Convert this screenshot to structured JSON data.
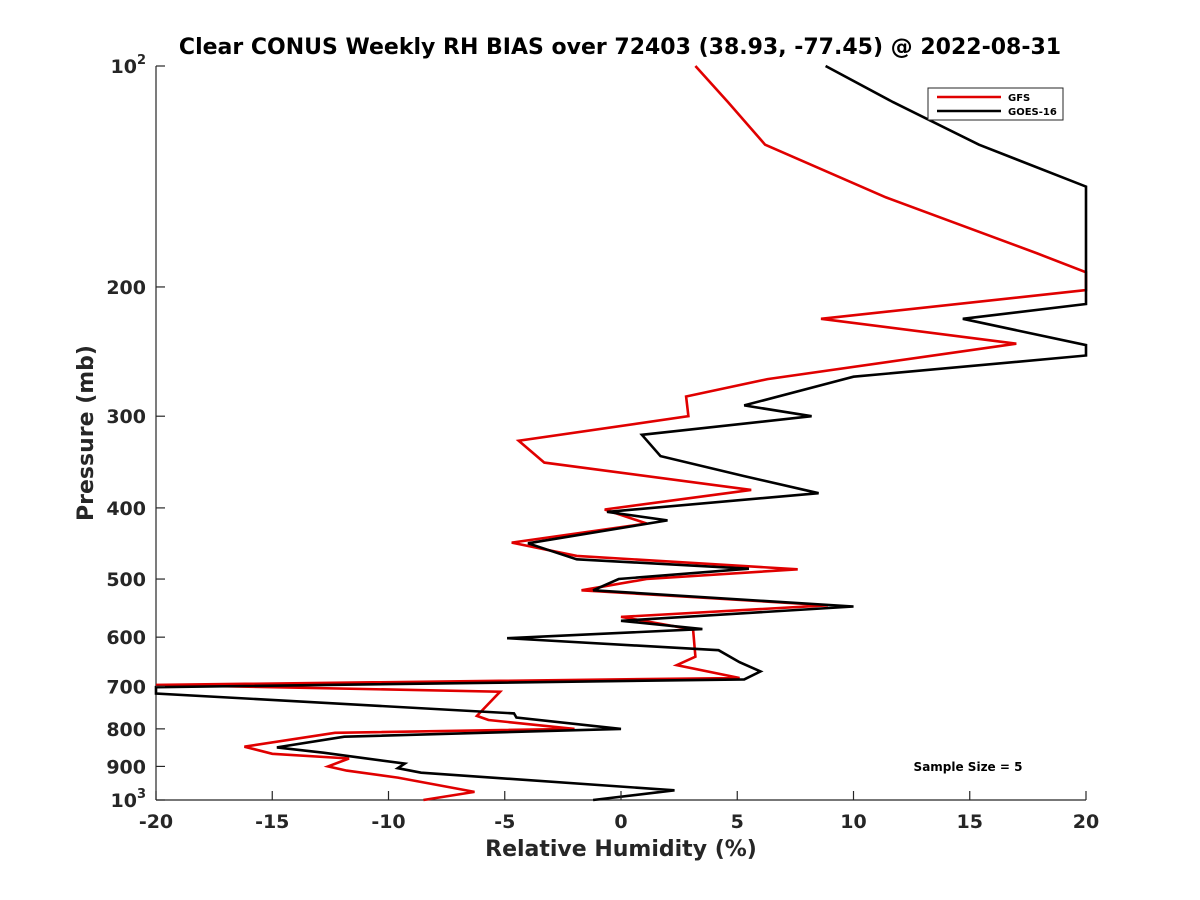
{
  "chart_data": {
    "type": "line",
    "title": "Clear CONUS Weekly RH BIAS over 72403 (38.93, -77.45) @ 2022-08-31",
    "xlabel": "Relative Humidity (%)",
    "ylabel": "Pressure (mb)",
    "xlim": [
      -20,
      20
    ],
    "ylim": [
      100,
      1000
    ],
    "y_scale": "log",
    "y_reversed": true,
    "x_ticks": [
      -20,
      -15,
      -10,
      -5,
      0,
      5,
      10,
      15,
      20
    ],
    "x_tick_labels": [
      "-20",
      "-15",
      "-10",
      "-5",
      "0",
      "5",
      "10",
      "15",
      "20"
    ],
    "y_ticks": [
      100,
      200,
      300,
      400,
      500,
      600,
      700,
      800,
      900,
      1000
    ],
    "y_tick_labels": [
      {
        "base": "10",
        "exp": "2"
      },
      {
        "base": "200",
        "exp": ""
      },
      {
        "base": "300",
        "exp": ""
      },
      {
        "base": "400",
        "exp": ""
      },
      {
        "base": "500",
        "exp": ""
      },
      {
        "base": "600",
        "exp": ""
      },
      {
        "base": "700",
        "exp": ""
      },
      {
        "base": "800",
        "exp": ""
      },
      {
        "base": "900",
        "exp": ""
      },
      {
        "base": "10",
        "exp": "3"
      }
    ],
    "grid": false,
    "legend_position": "top-right",
    "annotation": "Sample Size = 5",
    "series": [
      {
        "name": "GFS",
        "color": "#e00000",
        "points": [
          {
            "x": 3.2,
            "y": 100
          },
          {
            "x": 4.6,
            "y": 112
          },
          {
            "x": 6.2,
            "y": 128
          },
          {
            "x": 11.4,
            "y": 151
          },
          {
            "x": 17.9,
            "y": 180
          },
          {
            "x": 20,
            "y": 191
          },
          {
            "x": 20,
            "y": 202
          },
          {
            "x": 8.6,
            "y": 221
          },
          {
            "x": 17.0,
            "y": 239
          },
          {
            "x": 6.3,
            "y": 267
          },
          {
            "x": 2.8,
            "y": 282
          },
          {
            "x": 2.9,
            "y": 300
          },
          {
            "x": -4.4,
            "y": 324
          },
          {
            "x": -3.3,
            "y": 347
          },
          {
            "x": 5.6,
            "y": 378
          },
          {
            "x": -0.7,
            "y": 402
          },
          {
            "x": 1.1,
            "y": 420
          },
          {
            "x": -4.7,
            "y": 446
          },
          {
            "x": -1.9,
            "y": 465
          },
          {
            "x": 7.6,
            "y": 485
          },
          {
            "x": 1.1,
            "y": 500
          },
          {
            "x": -1.7,
            "y": 518
          },
          {
            "x": 8.9,
            "y": 543
          },
          {
            "x": 0.0,
            "y": 563
          },
          {
            "x": 3.1,
            "y": 586
          },
          {
            "x": 3.2,
            "y": 638
          },
          {
            "x": 2.4,
            "y": 655
          },
          {
            "x": 5.1,
            "y": 682
          },
          {
            "x": -20,
            "y": 697
          },
          {
            "x": -5.2,
            "y": 712
          },
          {
            "x": -6.2,
            "y": 768
          },
          {
            "x": -5.7,
            "y": 778
          },
          {
            "x": -2.0,
            "y": 800
          },
          {
            "x": -12.3,
            "y": 810
          },
          {
            "x": -16.2,
            "y": 846
          },
          {
            "x": -15.0,
            "y": 865
          },
          {
            "x": -11.7,
            "y": 878
          },
          {
            "x": -12.6,
            "y": 900
          },
          {
            "x": -11.8,
            "y": 912
          },
          {
            "x": -9.6,
            "y": 932
          },
          {
            "x": -6.3,
            "y": 975
          },
          {
            "x": -8.5,
            "y": 1000
          }
        ]
      },
      {
        "name": "GOES-16",
        "color": "#000000",
        "points": [
          {
            "x": 8.8,
            "y": 100
          },
          {
            "x": 11.7,
            "y": 112
          },
          {
            "x": 15.4,
            "y": 128
          },
          {
            "x": 20,
            "y": 146
          },
          {
            "x": 20,
            "y": 211
          },
          {
            "x": 14.7,
            "y": 221
          },
          {
            "x": 20,
            "y": 240
          },
          {
            "x": 20,
            "y": 248
          },
          {
            "x": 10.0,
            "y": 265
          },
          {
            "x": 5.3,
            "y": 290
          },
          {
            "x": 8.2,
            "y": 300
          },
          {
            "x": 0.9,
            "y": 318
          },
          {
            "x": 1.7,
            "y": 340
          },
          {
            "x": 5.3,
            "y": 362
          },
          {
            "x": 8.5,
            "y": 382
          },
          {
            "x": -0.6,
            "y": 405
          },
          {
            "x": 2.0,
            "y": 416
          },
          {
            "x": -4.0,
            "y": 447
          },
          {
            "x": -1.9,
            "y": 470
          },
          {
            "x": 5.5,
            "y": 484
          },
          {
            "x": -0.1,
            "y": 500
          },
          {
            "x": -1.2,
            "y": 518
          },
          {
            "x": 10.0,
            "y": 545
          },
          {
            "x": 0.0,
            "y": 570
          },
          {
            "x": 3.5,
            "y": 585
          },
          {
            "x": -4.9,
            "y": 602
          },
          {
            "x": 4.2,
            "y": 625
          },
          {
            "x": 5.1,
            "y": 649
          },
          {
            "x": 6.0,
            "y": 668
          },
          {
            "x": 5.3,
            "y": 685
          },
          {
            "x": -20,
            "y": 702
          },
          {
            "x": -20,
            "y": 716
          },
          {
            "x": -4.6,
            "y": 762
          },
          {
            "x": -4.5,
            "y": 772
          },
          {
            "x": 0.0,
            "y": 800
          },
          {
            "x": -11.9,
            "y": 820
          },
          {
            "x": -14.8,
            "y": 848
          },
          {
            "x": -12.8,
            "y": 862
          },
          {
            "x": -9.3,
            "y": 892
          },
          {
            "x": -9.6,
            "y": 905
          },
          {
            "x": -8.6,
            "y": 918
          },
          {
            "x": 2.3,
            "y": 970
          },
          {
            "x": -1.2,
            "y": 1000
          }
        ]
      }
    ]
  }
}
